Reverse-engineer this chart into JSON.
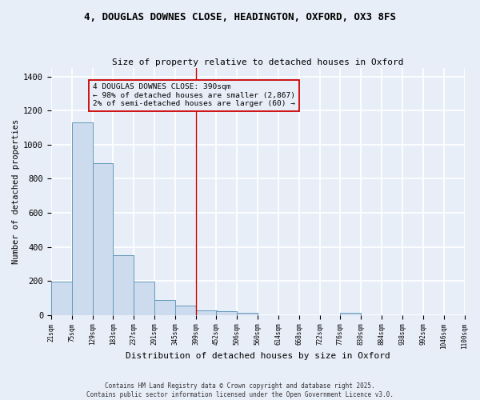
{
  "title_line1": "4, DOUGLAS DOWNES CLOSE, HEADINGTON, OXFORD, OX3 8FS",
  "title_line2": "Size of property relative to detached houses in Oxford",
  "xlabel": "Distribution of detached houses by size in Oxford",
  "ylabel": "Number of detached properties",
  "bar_color": "#ccdcee",
  "bar_edge_color": "#6699bb",
  "bar_left_edges": [
    21,
    75,
    129,
    183,
    237,
    291,
    345,
    399,
    452,
    506,
    560,
    614,
    668,
    722,
    776,
    830,
    884,
    938,
    992,
    1046
  ],
  "bar_heights": [
    195,
    1130,
    890,
    350,
    195,
    90,
    55,
    25,
    20,
    15,
    0,
    0,
    0,
    0,
    15,
    0,
    0,
    0,
    0,
    0
  ],
  "bin_width": 54,
  "xlim_left": 21,
  "xlim_right": 1100,
  "ylim_top": 1450,
  "ylim_bottom": 0,
  "vline_x": 399,
  "vline_color": "#cc0000",
  "annotation_text": "4 DOUGLAS DOWNES CLOSE: 390sqm\n← 98% of detached houses are smaller (2,867)\n2% of semi-detached houses are larger (60) →",
  "tick_labels": [
    "21sqm",
    "75sqm",
    "129sqm",
    "183sqm",
    "237sqm",
    "291sqm",
    "345sqm",
    "399sqm",
    "452sqm",
    "506sqm",
    "560sqm",
    "614sqm",
    "668sqm",
    "722sqm",
    "776sqm",
    "830sqm",
    "884sqm",
    "938sqm",
    "992sqm",
    "1046sqm",
    "1100sqm"
  ],
  "tick_positions": [
    21,
    75,
    129,
    183,
    237,
    291,
    345,
    399,
    452,
    506,
    560,
    614,
    668,
    722,
    776,
    830,
    884,
    938,
    992,
    1046,
    1100
  ],
  "footnote": "Contains HM Land Registry data © Crown copyright and database right 2025.\nContains public sector information licensed under the Open Government Licence v3.0.",
  "bg_color": "#e8eef8",
  "grid_color": "#ffffff",
  "yticks": [
    0,
    200,
    400,
    600,
    800,
    1000,
    1200,
    1400
  ]
}
